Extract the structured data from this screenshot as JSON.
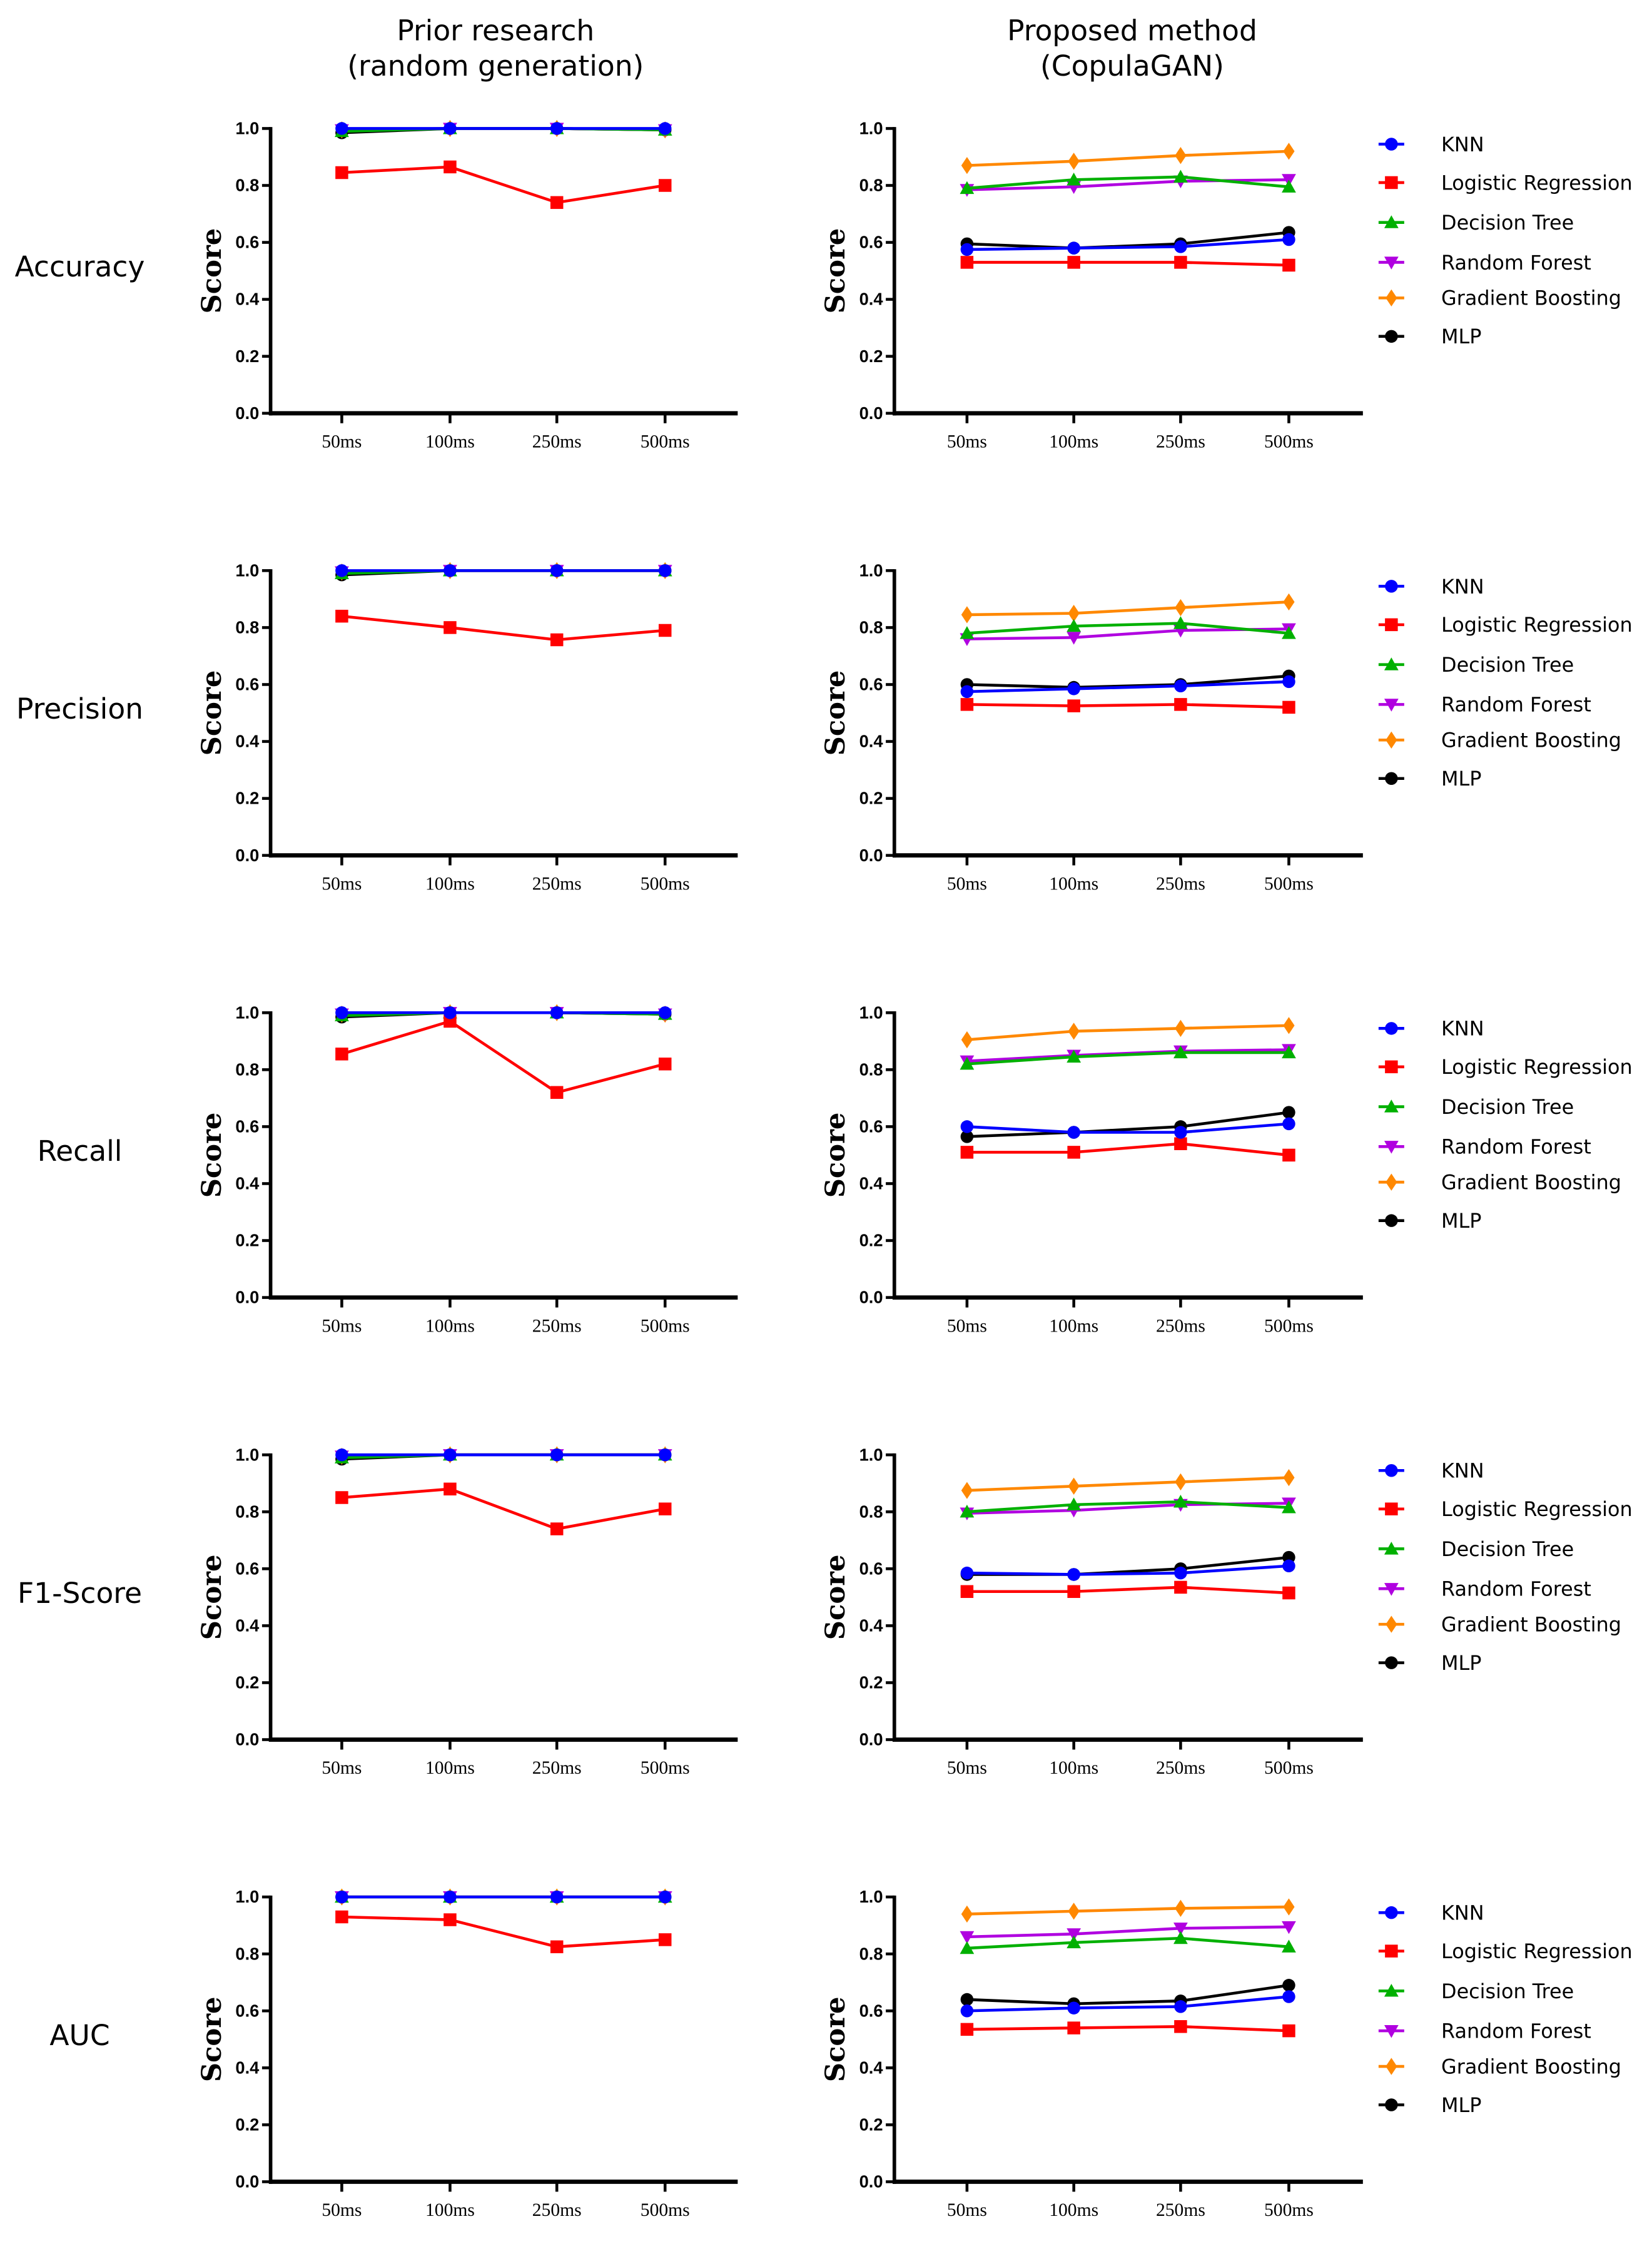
{
  "column_titles": [
    [
      "Prior research",
      "(random generation)"
    ],
    [
      "Proposed method",
      "(CopulaGAN)"
    ]
  ],
  "chart_data": {
    "type": "line",
    "categories": [
      "50ms",
      "100ms",
      "250ms",
      "500ms"
    ],
    "ylabel": "Score",
    "ylim": [
      0,
      1
    ],
    "yticks": [
      "0.0",
      "0.2",
      "0.4",
      "0.6",
      "0.8",
      "1.0"
    ],
    "legend_position": "right",
    "series_styles": [
      {
        "name": "KNN",
        "color": "#0000ff",
        "marker": "circle"
      },
      {
        "name": "Logistic Regression",
        "color": "#ff0000",
        "marker": "square"
      },
      {
        "name": "Decision Tree",
        "color": "#00b000",
        "marker": "triangle-up"
      },
      {
        "name": "Random Forest",
        "color": "#b000e0",
        "marker": "triangle-down"
      },
      {
        "name": "Gradient Boosting",
        "color": "#ff8800",
        "marker": "diamond"
      },
      {
        "name": "MLP",
        "color": "#000000",
        "marker": "circle"
      }
    ],
    "rows": [
      {
        "metric": "Accuracy",
        "prior": [
          [
            1.0,
            1.0,
            1.0,
            1.0
          ],
          [
            0.845,
            0.865,
            0.74,
            0.8
          ],
          [
            0.99,
            1.0,
            1.0,
            0.995
          ],
          [
            0.995,
            1.0,
            1.0,
            0.995
          ],
          [
            0.995,
            1.0,
            1.0,
            0.995
          ],
          [
            0.985,
            1.0,
            1.0,
            0.995
          ]
        ],
        "proposed": [
          [
            0.575,
            0.58,
            0.585,
            0.61
          ],
          [
            0.53,
            0.53,
            0.53,
            0.52
          ],
          [
            0.79,
            0.82,
            0.83,
            0.795
          ],
          [
            0.785,
            0.795,
            0.815,
            0.82
          ],
          [
            0.87,
            0.885,
            0.905,
            0.92
          ],
          [
            0.595,
            0.58,
            0.595,
            0.635
          ]
        ]
      },
      {
        "metric": "Precision",
        "prior": [
          [
            1.0,
            1.0,
            1.0,
            1.0
          ],
          [
            0.84,
            0.8,
            0.757,
            0.79
          ],
          [
            0.99,
            1.0,
            1.0,
            1.0
          ],
          [
            0.995,
            1.0,
            1.0,
            1.0
          ],
          [
            0.995,
            1.0,
            1.0,
            1.0
          ],
          [
            0.985,
            1.0,
            1.0,
            1.0
          ]
        ],
        "proposed": [
          [
            0.575,
            0.585,
            0.595,
            0.61
          ],
          [
            0.53,
            0.525,
            0.53,
            0.52
          ],
          [
            0.78,
            0.805,
            0.815,
            0.78
          ],
          [
            0.76,
            0.765,
            0.79,
            0.795
          ],
          [
            0.845,
            0.85,
            0.87,
            0.89
          ],
          [
            0.6,
            0.59,
            0.6,
            0.63
          ]
        ]
      },
      {
        "metric": "Recall",
        "prior": [
          [
            1.0,
            1.0,
            1.0,
            1.0
          ],
          [
            0.855,
            0.97,
            0.72,
            0.82
          ],
          [
            0.99,
            1.0,
            1.0,
            0.995
          ],
          [
            0.995,
            1.0,
            1.0,
            0.995
          ],
          [
            0.995,
            1.0,
            1.0,
            0.995
          ],
          [
            0.985,
            1.0,
            1.0,
            0.995
          ]
        ],
        "proposed": [
          [
            0.6,
            0.58,
            0.58,
            0.61
          ],
          [
            0.51,
            0.51,
            0.54,
            0.5
          ],
          [
            0.82,
            0.845,
            0.86,
            0.86
          ],
          [
            0.83,
            0.85,
            0.865,
            0.87
          ],
          [
            0.905,
            0.935,
            0.945,
            0.955
          ],
          [
            0.565,
            0.58,
            0.6,
            0.65
          ]
        ]
      },
      {
        "metric": "F1-Score",
        "prior": [
          [
            1.0,
            1.0,
            1.0,
            1.0
          ],
          [
            0.85,
            0.88,
            0.74,
            0.81
          ],
          [
            0.99,
            1.0,
            1.0,
            1.0
          ],
          [
            0.995,
            1.0,
            1.0,
            1.0
          ],
          [
            0.995,
            1.0,
            1.0,
            1.0
          ],
          [
            0.985,
            1.0,
            1.0,
            1.0
          ]
        ],
        "proposed": [
          [
            0.585,
            0.58,
            0.585,
            0.61
          ],
          [
            0.52,
            0.52,
            0.535,
            0.515
          ],
          [
            0.8,
            0.825,
            0.835,
            0.815
          ],
          [
            0.795,
            0.805,
            0.825,
            0.83
          ],
          [
            0.875,
            0.89,
            0.905,
            0.92
          ],
          [
            0.58,
            0.58,
            0.6,
            0.64
          ]
        ]
      },
      {
        "metric": "AUC",
        "prior": [
          [
            1.0,
            1.0,
            1.0,
            1.0
          ],
          [
            0.93,
            0.92,
            0.825,
            0.85
          ],
          [
            1.0,
            1.0,
            1.0,
            1.0
          ],
          [
            1.0,
            1.0,
            1.0,
            1.0
          ],
          [
            1.0,
            1.0,
            1.0,
            1.0
          ],
          [
            1.0,
            1.0,
            1.0,
            1.0
          ]
        ],
        "proposed": [
          [
            0.6,
            0.61,
            0.615,
            0.65
          ],
          [
            0.535,
            0.54,
            0.545,
            0.53
          ],
          [
            0.82,
            0.84,
            0.855,
            0.825
          ],
          [
            0.86,
            0.87,
            0.89,
            0.895
          ],
          [
            0.94,
            0.95,
            0.96,
            0.965
          ],
          [
            0.64,
            0.625,
            0.635,
            0.69
          ]
        ]
      }
    ]
  }
}
